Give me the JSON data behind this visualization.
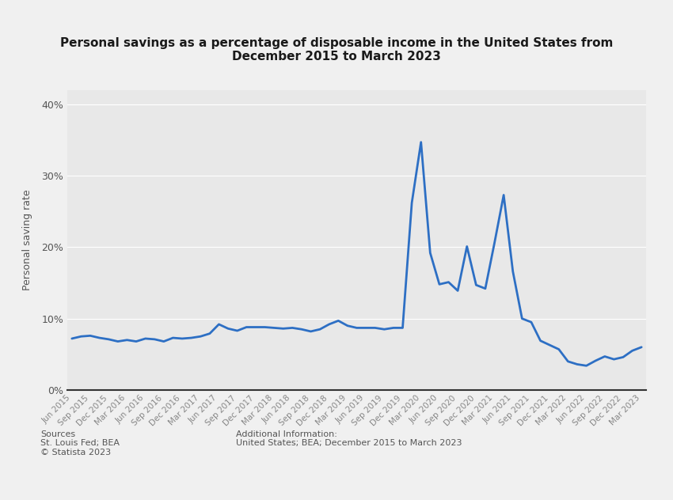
{
  "title": "Personal savings as a percentage of disposable income in the United States from\nDecember 2015 to March 2023",
  "ylabel": "Personal saving rate",
  "background_color": "#f0f0f0",
  "plot_background_color": "#e8e8e8",
  "line_color": "#2d6fc4",
  "line_width": 2.0,
  "ylim": [
    0,
    0.42
  ],
  "yticks": [
    0.0,
    0.1,
    0.2,
    0.3,
    0.4
  ],
  "ytick_labels": [
    "0%",
    "10%",
    "20%",
    "30%",
    "40%"
  ],
  "sources_text": "Sources\nSt. Louis Fed; BEA\n© Statista 2023",
  "additional_info_text": "Additional Information:\nUnited States; BEA; December 2015 to March 2023",
  "x_labels": [
    "Jun 2015",
    "Sep 2015",
    "Dec 2015",
    "Mar 2016",
    "Jun 2016",
    "Sep 2016",
    "Dec 2016",
    "Mar 2017",
    "Jun 2017",
    "Sep 2017",
    "Dec 2017",
    "Mar 2018",
    "Jun 2018",
    "Sep 2018",
    "Dec 2018",
    "Mar 2019",
    "Jun 2019",
    "Sep 2019",
    "Dec 2019",
    "Mar 2020",
    "Jun 2020",
    "Sep 2020",
    "Dec 2020",
    "Mar 2021",
    "Jun 2021",
    "Sep 2021",
    "Dec 2021",
    "Mar 2022",
    "Jun 2022",
    "Sep 2022",
    "Dec 2022",
    "Mar 2023"
  ],
  "values": [
    0.072,
    0.075,
    0.076,
    0.073,
    0.071,
    0.068,
    0.07,
    0.068,
    0.072,
    0.071,
    0.068,
    0.073,
    0.072,
    0.073,
    0.075,
    0.079,
    0.092,
    0.086,
    0.083,
    0.088,
    0.088,
    0.088,
    0.087,
    0.086,
    0.087,
    0.085,
    0.082,
    0.085,
    0.092,
    0.097,
    0.09,
    0.087,
    0.087,
    0.087,
    0.085,
    0.087,
    0.087,
    0.262,
    0.347,
    0.192,
    0.148,
    0.151,
    0.139,
    0.201,
    0.147,
    0.142,
    0.206,
    0.273,
    0.166,
    0.1,
    0.095,
    0.069,
    0.063,
    0.057,
    0.04,
    0.036,
    0.034,
    0.041,
    0.047,
    0.043,
    0.046,
    0.055,
    0.06
  ]
}
